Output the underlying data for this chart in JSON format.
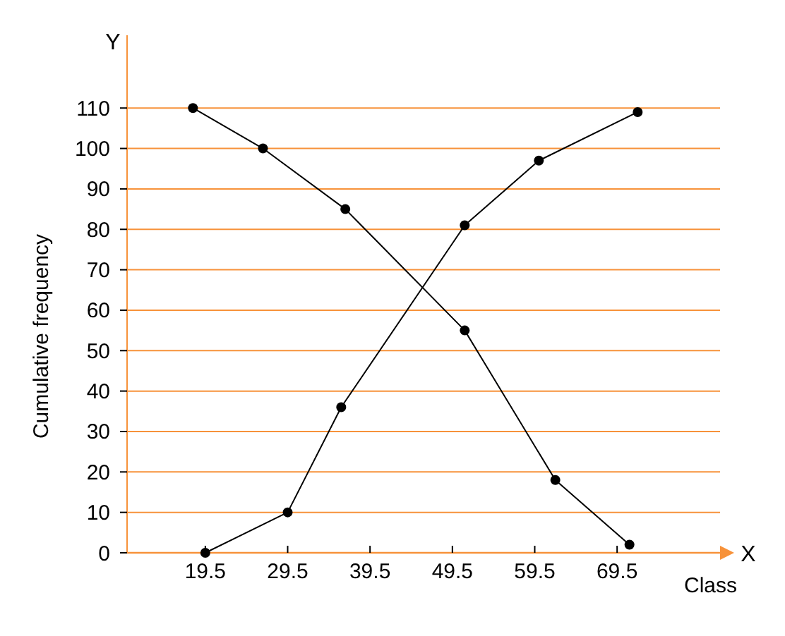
{
  "chart_data": {
    "type": "line",
    "xlabel": "Class",
    "ylabel": "Cumulative frequency",
    "annotations": [
      "Y",
      "X"
    ],
    "xlim": [
      10,
      82
    ],
    "xticks": [
      19.5,
      29.5,
      39.5,
      49.5,
      59.5,
      69.5
    ],
    "ylim": [
      0,
      128
    ],
    "yticks": [
      0,
      10,
      20,
      30,
      40,
      50,
      60,
      70,
      80,
      90,
      100,
      110
    ],
    "grid": "y",
    "marker": "circle",
    "line_style": "solid",
    "series": [
      {
        "color": "#000000",
        "x": [
          19.5,
          29.5,
          36,
          51,
          60,
          72
        ],
        "values": [
          0,
          10,
          36,
          81,
          97,
          109
        ]
      },
      {
        "color": "#000000",
        "x": [
          18,
          26.5,
          36.5,
          51,
          62,
          71
        ],
        "values": [
          110,
          100,
          85,
          55,
          18,
          2
        ]
      }
    ]
  }
}
